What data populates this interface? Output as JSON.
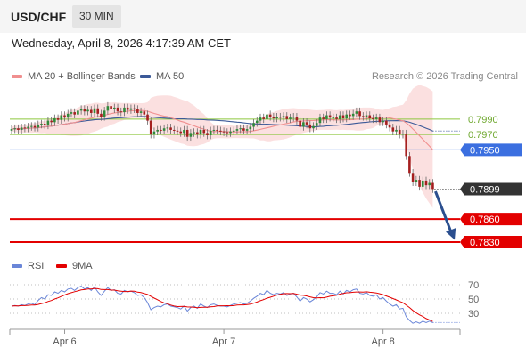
{
  "header": {
    "pair": "USD/CHF",
    "timeframe": "30 MIN",
    "datetime": "Wednesday, April 8, 2026 4:17:39 AM CET"
  },
  "legend": {
    "ma20": {
      "label": "MA 20 + Bollinger Bands",
      "color": "#f08f8f"
    },
    "ma50": {
      "label": "MA 50",
      "color": "#3b5998"
    },
    "credit": "Research © 2026 Trading Central"
  },
  "rsi_legend": {
    "rsi": {
      "label": "RSI",
      "color": "#6a86d8"
    },
    "ma9": {
      "label": "9MA",
      "color": "#e30000"
    }
  },
  "chart_data": {
    "type": "candlestick",
    "ylim": [
      0.7815,
      0.8035
    ],
    "levels": [
      {
        "label": "0.7990",
        "value": 0.799,
        "kind": "resistance",
        "color": "#8dc63f"
      },
      {
        "label": "0.7970",
        "value": 0.797,
        "kind": "resistance",
        "color": "#8dc63f"
      },
      {
        "label": "0.7950",
        "value": 0.795,
        "kind": "pivot",
        "color": "#3b6fe0"
      },
      {
        "label": "0.7899",
        "value": 0.7899,
        "kind": "last",
        "color": "#333333"
      },
      {
        "label": "0.7860",
        "value": 0.786,
        "kind": "support",
        "color": "#e30000"
      },
      {
        "label": "0.7830",
        "value": 0.783,
        "kind": "support",
        "color": "#e30000"
      }
    ],
    "x_ticks": [
      {
        "label": "Apr 6",
        "index": 16
      },
      {
        "label": "Apr 7",
        "index": 64
      },
      {
        "label": "Apr 8",
        "index": 112
      }
    ],
    "close": [
      0.7977,
      0.7978,
      0.7976,
      0.7979,
      0.7978,
      0.798,
      0.7981,
      0.7979,
      0.7983,
      0.7984,
      0.7982,
      0.7988,
      0.7986,
      0.7991,
      0.7989,
      0.7995,
      0.7992,
      0.7997,
      0.7999,
      0.7996,
      0.8001,
      0.8003,
      0.8,
      0.8002,
      0.7998,
      0.8004,
      0.7997,
      0.7993,
      0.8001,
      0.8007,
      0.8003,
      0.8005,
      0.8,
      0.7999,
      0.8005,
      0.8002,
      0.8004,
      0.8003,
      0.7998,
      0.8,
      0.7996,
      0.7988,
      0.797,
      0.7974,
      0.7976,
      0.7975,
      0.7978,
      0.7979,
      0.7976,
      0.7975,
      0.7974,
      0.7972,
      0.7976,
      0.7967,
      0.7972,
      0.7973,
      0.797,
      0.7976,
      0.7972,
      0.7969,
      0.7975,
      0.7976,
      0.7975,
      0.7974,
      0.7973,
      0.7972,
      0.7974,
      0.7975,
      0.7977,
      0.7978,
      0.7975,
      0.7977,
      0.798,
      0.7985,
      0.7988,
      0.7992,
      0.799,
      0.7996,
      0.7993,
      0.7991,
      0.7993,
      0.7992,
      0.7994,
      0.799,
      0.7992,
      0.7993,
      0.7988,
      0.798,
      0.7986,
      0.7983,
      0.7978,
      0.7981,
      0.7985,
      0.7992,
      0.799,
      0.7995,
      0.7992,
      0.7992,
      0.799,
      0.7995,
      0.7991,
      0.7996,
      0.7994,
      0.7997,
      0.8,
      0.7994,
      0.7993,
      0.7995,
      0.7991,
      0.799,
      0.7992,
      0.7986,
      0.7988,
      0.7983,
      0.7979,
      0.7974,
      0.7976,
      0.797,
      0.7971,
      0.7942,
      0.792,
      0.7908,
      0.7911,
      0.7902,
      0.791,
      0.7904,
      0.7907,
      0.7899
    ],
    "rsi_ylim": [
      0,
      100
    ],
    "rsi_ticks": [
      70,
      50,
      30
    ],
    "rsi": [
      40,
      41,
      40,
      42,
      41,
      43,
      44,
      42,
      48,
      52,
      50,
      56,
      55,
      60,
      58,
      62,
      60,
      64,
      65,
      62,
      66,
      68,
      64,
      66,
      62,
      67,
      60,
      55,
      61,
      66,
      62,
      63,
      58,
      57,
      62,
      60,
      61,
      59,
      55,
      56,
      52,
      45,
      35,
      38,
      40,
      39,
      42,
      43,
      40,
      39,
      38,
      36,
      40,
      33,
      38,
      40,
      37,
      43,
      40,
      38,
      42,
      43,
      41,
      40,
      40,
      39,
      41,
      43,
      44,
      45,
      43,
      44,
      47,
      51,
      54,
      58,
      56,
      62,
      58,
      56,
      58,
      57,
      59,
      55,
      57,
      58,
      53,
      47,
      52,
      50,
      46,
      49,
      53,
      59,
      57,
      61,
      58,
      58,
      56,
      61,
      57,
      62,
      60,
      63,
      64,
      58,
      57,
      59,
      55,
      54,
      56,
      50,
      52,
      47,
      43,
      40,
      42,
      36,
      37,
      25,
      20,
      16,
      18,
      16,
      19,
      17,
      19,
      17
    ]
  }
}
